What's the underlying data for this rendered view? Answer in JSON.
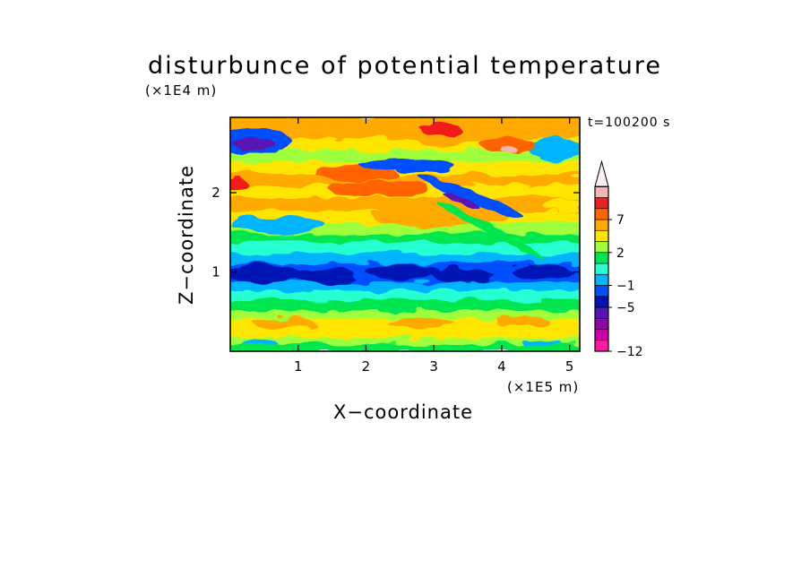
{
  "chart_data": {
    "type": "heatmap",
    "title": "disturbunce of potential temperature",
    "xlabel": "X−coordinate",
    "ylabel": "Z−coordinate",
    "x_unit": "(×1E5 m)",
    "z_unit": "(×1E4 m)",
    "time_label": "t=100200 s",
    "xlim": [
      0,
      5.15
    ],
    "ylim": [
      0,
      2.95
    ],
    "x_ticks": [
      1,
      2,
      3,
      4,
      5
    ],
    "y_ticks": [
      1,
      2
    ],
    "x_tick_labels": [
      "1",
      "2",
      "3",
      "4",
      "5"
    ],
    "y_tick_labels": [
      "1",
      "2"
    ],
    "colorbar": {
      "levels": [
        -12,
        -11,
        -9,
        -7,
        -5,
        -3,
        -1,
        0,
        1,
        2,
        3,
        5,
        7,
        9,
        11
      ],
      "labels": [
        "−12",
        "−5",
        "−1",
        "2",
        "7"
      ],
      "label_values": [
        -12,
        -5,
        -1,
        2,
        7
      ],
      "colors": [
        "#ff1aa6",
        "#cc00a5",
        "#8a0aa8",
        "#5a14b4",
        "#0012b4",
        "#0050ff",
        "#00b4ff",
        "#28ffd2",
        "#00e650",
        "#a0ff3c",
        "#ffe600",
        "#ffaa00",
        "#ff6400",
        "#f01e1e",
        "#fab4b4",
        "#fff0f0"
      ],
      "extend": "max"
    },
    "bands": [
      {
        "z": [
          0.0,
          0.1
        ],
        "value": 0.5
      },
      {
        "z": [
          0.1,
          0.18
        ],
        "value": 1.5
      },
      {
        "z": [
          0.18,
          0.28
        ],
        "value": 2.5
      },
      {
        "z": [
          0.28,
          0.42
        ],
        "value": 2.0
      },
      {
        "z": [
          0.42,
          0.52
        ],
        "value": 1.2
      },
      {
        "z": [
          0.52,
          0.66
        ],
        "value": 0.5
      },
      {
        "z": [
          0.66,
          0.78
        ],
        "value": -0.5
      },
      {
        "z": [
          0.78,
          0.88
        ],
        "value": -2
      },
      {
        "z": [
          0.88,
          1.12
        ],
        "value": -4
      },
      {
        "z": [
          1.12,
          1.25
        ],
        "value": -2
      },
      {
        "z": [
          1.25,
          1.38
        ],
        "value": -0.5
      },
      {
        "z": [
          1.38,
          1.5
        ],
        "value": 0.5
      },
      {
        "z": [
          1.5,
          1.62
        ],
        "value": 1.5
      },
      {
        "z": [
          1.62,
          1.78
        ],
        "value": 2.5
      },
      {
        "z": [
          1.78,
          1.95
        ],
        "value": 4
      },
      {
        "z": [
          1.95,
          2.1
        ],
        "value": 2.5
      },
      {
        "z": [
          2.1,
          2.25
        ],
        "value": 4
      },
      {
        "z": [
          2.25,
          2.4
        ],
        "value": 2.5
      },
      {
        "z": [
          2.4,
          2.55
        ],
        "value": 1
      },
      {
        "z": [
          2.55,
          2.7
        ],
        "value": 2.5
      },
      {
        "z": [
          2.7,
          2.95
        ],
        "value": 4
      }
    ],
    "features": [
      {
        "x": 0.35,
        "z": 2.65,
        "rx": 0.55,
        "rz": 0.16,
        "value": -5
      },
      {
        "x": 0.35,
        "z": 2.62,
        "rx": 0.3,
        "rz": 0.08,
        "value": -9
      },
      {
        "x": 4.8,
        "z": 2.55,
        "rx": 0.4,
        "rz": 0.14,
        "value": -3
      },
      {
        "x": 1.85,
        "z": 2.25,
        "rx": 0.6,
        "rz": 0.1,
        "value": 5
      },
      {
        "x": 2.2,
        "z": 2.05,
        "rx": 0.75,
        "rz": 0.1,
        "value": 5
      },
      {
        "x": 2.6,
        "z": 2.35,
        "rx": 0.7,
        "rz": 0.07,
        "value": -5
      },
      {
        "x": 3.1,
        "z": 1.7,
        "rx": 1.0,
        "rz": 0.14,
        "value": 4
      },
      {
        "x": 3.25,
        "z": 2.75,
        "rx": 0.7,
        "rz": 0.16,
        "value": 4
      },
      {
        "x": 3.1,
        "z": 2.8,
        "rx": 0.3,
        "rz": 0.08,
        "value": 7
      },
      {
        "x": 4.1,
        "z": 2.6,
        "rx": 0.4,
        "rz": 0.1,
        "value": 5
      },
      {
        "x": 4.1,
        "z": 2.55,
        "rx": 0.12,
        "rz": 0.05,
        "value": 9
      },
      {
        "x": 0.1,
        "z": 2.1,
        "rx": 0.15,
        "rz": 0.08,
        "value": 7
      },
      {
        "x": 0.7,
        "z": 1.6,
        "rx": 0.7,
        "rz": 0.1,
        "value": -2
      },
      {
        "x": 4.9,
        "z": 1.85,
        "rx": 0.3,
        "rz": 0.08,
        "value": 2
      }
    ],
    "tilted_features": [
      {
        "x": 3.55,
        "z": 1.95,
        "rx": 0.85,
        "rz": 0.08,
        "angle_deg": 22,
        "value": -5
      },
      {
        "x": 3.4,
        "z": 1.9,
        "rx": 0.3,
        "rz": 0.04,
        "angle_deg": 22,
        "value": -9
      },
      {
        "x": 3.8,
        "z": 1.55,
        "rx": 0.9,
        "rz": 0.06,
        "angle_deg": 28,
        "value": 0.2
      }
    ],
    "blobs": [
      {
        "x": 0.5,
        "z": 0.97,
        "rx": 0.55,
        "rz": 0.12,
        "value": -7
      },
      {
        "x": 1.4,
        "z": 0.95,
        "rx": 0.45,
        "rz": 0.1,
        "value": -7
      },
      {
        "x": 2.55,
        "z": 1.0,
        "rx": 0.55,
        "rz": 0.1,
        "value": -7
      },
      {
        "x": 3.45,
        "z": 0.95,
        "rx": 0.45,
        "rz": 0.09,
        "value": -7
      },
      {
        "x": 4.6,
        "z": 1.0,
        "rx": 0.45,
        "rz": 0.09,
        "value": -7
      },
      {
        "x": 0.8,
        "z": 0.35,
        "rx": 0.45,
        "rz": 0.07,
        "value": 4
      },
      {
        "x": 2.8,
        "z": 0.36,
        "rx": 0.5,
        "rz": 0.06,
        "value": 4
      },
      {
        "x": 4.3,
        "z": 0.38,
        "rx": 0.4,
        "rz": 0.06,
        "value": 4
      },
      {
        "x": 0.45,
        "z": 0.1,
        "rx": 0.25,
        "rz": 0.04,
        "value": -2
      },
      {
        "x": 4.6,
        "z": 0.1,
        "rx": 0.3,
        "rz": 0.04,
        "value": -2
      }
    ]
  }
}
